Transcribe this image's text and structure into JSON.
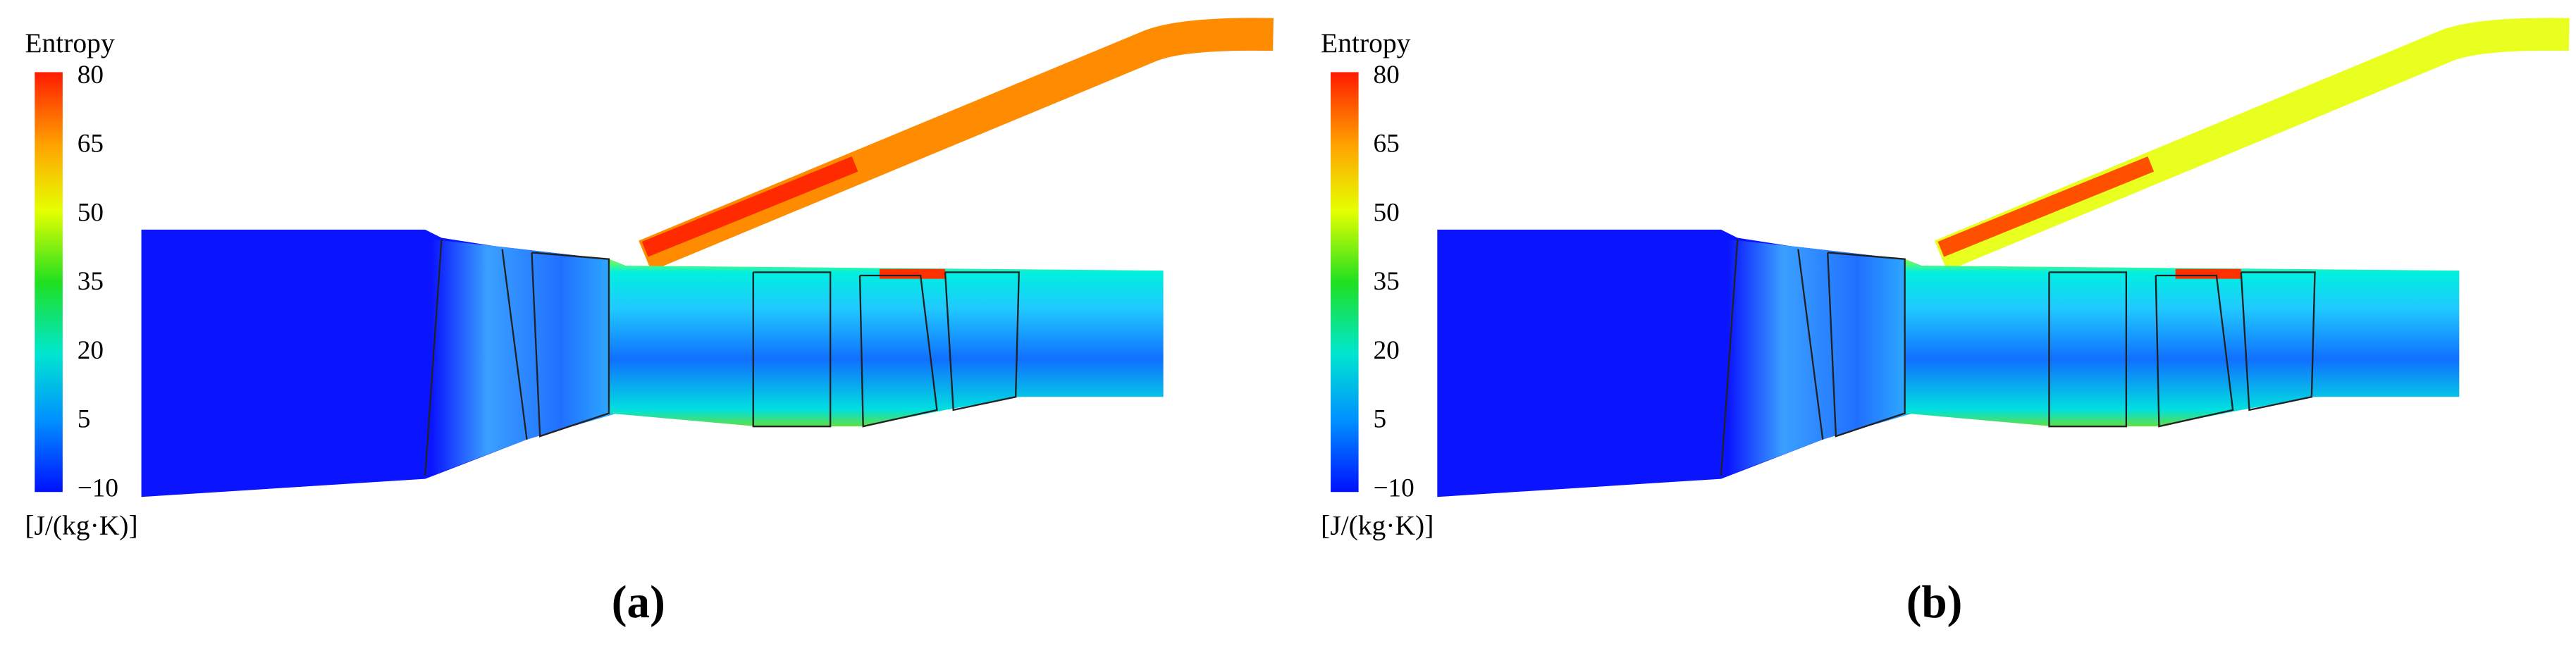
{
  "panels": [
    {
      "colorbar": {
        "title": "Entropy",
        "ticks": [
          "80",
          "65",
          "50",
          "35",
          "20",
          "5",
          "−10"
        ],
        "unit": "[J/(kg·K)]"
      },
      "caption": "(a)"
    },
    {
      "colorbar": {
        "title": "Entropy",
        "ticks": [
          "80",
          "65",
          "50",
          "35",
          "20",
          "5",
          "−10"
        ],
        "unit": "[J/(kg·K)]"
      },
      "caption": "(b)"
    }
  ]
}
